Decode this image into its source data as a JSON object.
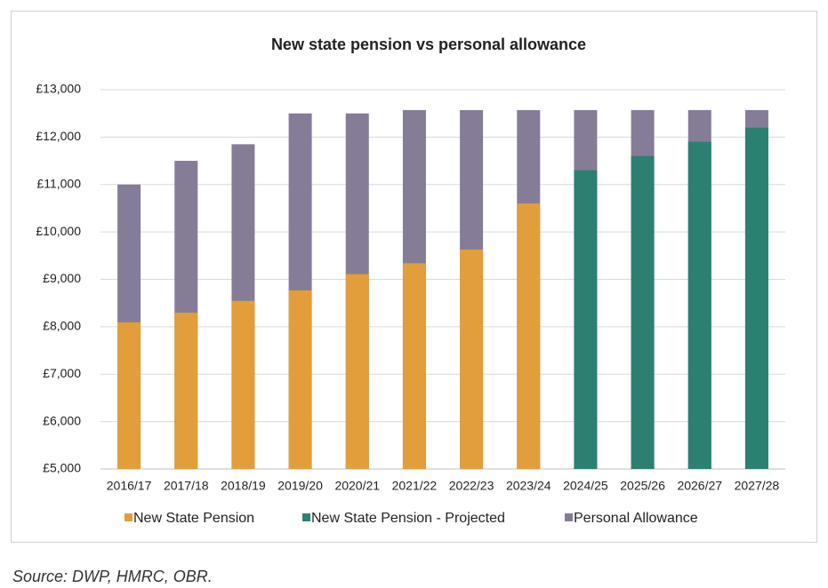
{
  "chart_data": {
    "type": "bar",
    "title": "New state pension vs personal allowance",
    "categories": [
      "2016/17",
      "2017/18",
      "2018/19",
      "2019/20",
      "2020/21",
      "2021/22",
      "2022/23",
      "2023/24",
      "2024/25",
      "2025/26",
      "2026/27",
      "2027/28"
    ],
    "series": [
      {
        "name": "Personal Allowance",
        "color": "#857c98",
        "values": [
          11000,
          11500,
          11850,
          12500,
          12500,
          12570,
          12570,
          12570,
          12570,
          12570,
          12570,
          12570
        ]
      },
      {
        "name": "New State Pension",
        "color": "#e19e3b",
        "values": [
          8094,
          8297,
          8546,
          8767,
          9110,
          9339,
          9628,
          10600,
          null,
          null,
          null,
          null
        ]
      },
      {
        "name": "New State Pension - Projected",
        "color": "#2b8072",
        "values": [
          null,
          null,
          null,
          null,
          null,
          null,
          null,
          null,
          11300,
          11600,
          11900,
          12200
        ]
      }
    ],
    "legend_order": [
      1,
      2,
      0
    ],
    "ylim": [
      5000,
      13000
    ],
    "yticks": [
      {
        "value": 5000,
        "label": "£5,000"
      },
      {
        "value": 6000,
        "label": "£6,000"
      },
      {
        "value": 7000,
        "label": "£7,000"
      },
      {
        "value": 8000,
        "label": "£8,000"
      },
      {
        "value": 9000,
        "label": "£9,000"
      },
      {
        "value": 10000,
        "label": "£10,000"
      },
      {
        "value": 11000,
        "label": "£11,000"
      },
      {
        "value": 12000,
        "label": "£12,000"
      },
      {
        "value": 13000,
        "label": "£13,000"
      }
    ],
    "grid": true
  },
  "source": "Source: DWP, HMRC, OBR."
}
